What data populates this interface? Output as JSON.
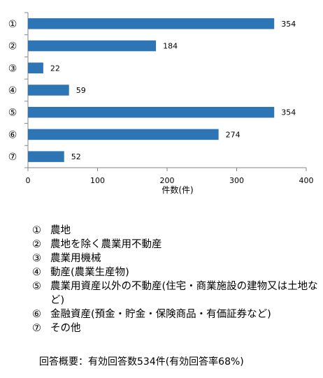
{
  "chart_data": {
    "type": "bar",
    "orientation": "horizontal",
    "categories": [
      "①",
      "②",
      "③",
      "④",
      "⑤",
      "⑥",
      "⑦"
    ],
    "values": [
      354,
      184,
      22,
      59,
      354,
      274,
      52
    ],
    "xlabel": "件数(件)",
    "xlim": [
      0,
      400
    ],
    "xticks": [
      0,
      100,
      200,
      300,
      400
    ],
    "bar_color": "#2e75b6",
    "grid": false
  },
  "legend": [
    {
      "marker": "①",
      "text": "農地"
    },
    {
      "marker": "②",
      "text": "農地を除く農業用不動産"
    },
    {
      "marker": "③",
      "text": "農業用機械"
    },
    {
      "marker": "④",
      "text": "動産(農業生産物)"
    },
    {
      "marker": "⑤",
      "text": "農業用資産以外の不動産(住宅・商業施設の建物又は土地など)"
    },
    {
      "marker": "⑥",
      "text": "金融資産(預金・貯金・保険商品・有価証券など)"
    },
    {
      "marker": "⑦",
      "text": "その他"
    }
  ],
  "summary": "回答概要：有効回答数534件(有効回答率68%)"
}
